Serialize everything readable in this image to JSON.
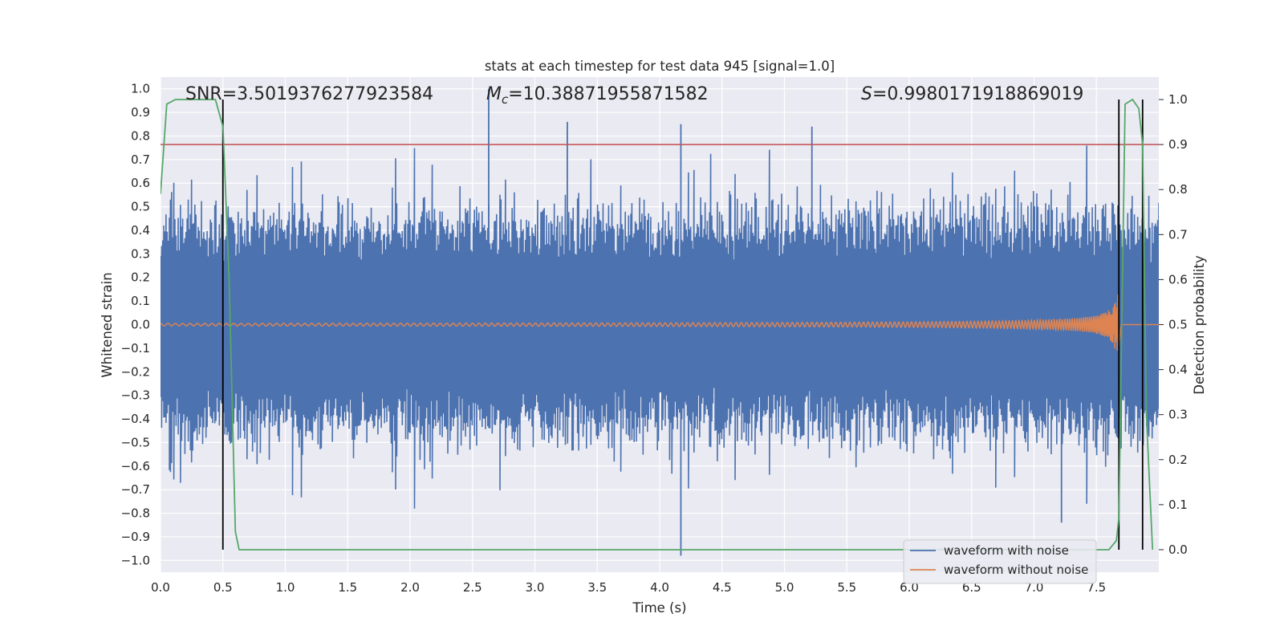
{
  "chart_data": {
    "type": "line",
    "title": "stats at each timestep for test data 945 [signal=1.0]",
    "xlabel": "Time (s)",
    "ylabel": "Whitened strain",
    "y2label": "Detection probability",
    "xlim": [
      0.0,
      8.0
    ],
    "ylim": [
      -1.05,
      1.05
    ],
    "y2lim": [
      -0.05,
      1.05
    ],
    "xticks": [
      "0.0",
      "0.5",
      "1.0",
      "1.5",
      "2.0",
      "2.5",
      "3.0",
      "3.5",
      "4.0",
      "4.5",
      "5.0",
      "5.5",
      "6.0",
      "6.5",
      "7.0",
      "7.5"
    ],
    "yticks": [
      "1.0",
      "0.9",
      "0.8",
      "0.7",
      "0.6",
      "0.5",
      "0.4",
      "0.3",
      "0.2",
      "0.1",
      "0.0",
      "−0.1",
      "−0.2",
      "−0.3",
      "−0.4",
      "−0.5",
      "−0.6",
      "−0.7",
      "−0.8",
      "−0.9",
      "−1.0"
    ],
    "y2ticks": [
      "1.0",
      "0.9",
      "0.8",
      "0.7",
      "0.6",
      "0.5",
      "0.4",
      "0.3",
      "0.2",
      "0.1",
      "0.0"
    ],
    "stats": {
      "snr": "SNR=3.5019376277923584",
      "mc_symbol": "M",
      "mc_sub": "c",
      "mc_value": "=10.38871955871582",
      "s_symbol": "S",
      "s_value": "=0.9980171918869019"
    },
    "threshold": {
      "value": 0.9,
      "axis": "y2",
      "color": "#c44e52"
    },
    "vlines": [
      0.5,
      7.68,
      7.87
    ],
    "spikes": [
      {
        "x": 2.63,
        "y": 1.0
      },
      {
        "x": 3.26,
        "y": 0.86
      },
      {
        "x": 4.17,
        "y": 0.85
      },
      {
        "x": 5.22,
        "y": 0.84
      },
      {
        "x": 4.17,
        "y": -0.98
      },
      {
        "x": 7.22,
        "y": -0.84
      }
    ],
    "detection_probability": {
      "x": [
        0.0,
        0.05,
        0.12,
        0.2,
        0.3,
        0.44,
        0.5,
        0.55,
        0.6,
        0.63,
        1.0,
        7.6,
        7.66,
        7.68,
        7.73,
        7.79,
        7.84,
        7.87,
        7.9,
        7.95
      ],
      "y": [
        0.79,
        0.99,
        1.0,
        1.0,
        1.0,
        1.0,
        0.94,
        0.6,
        0.04,
        0.0,
        0.0,
        0.0,
        0.02,
        0.07,
        0.99,
        1.0,
        0.98,
        0.9,
        0.3,
        0.0
      ]
    },
    "series": [
      {
        "name": "waveform with noise",
        "color": "#4c72b0",
        "samples": 900,
        "baseline_amplitude": 0.4
      },
      {
        "name": "waveform without noise",
        "color": "#dd8452",
        "chirp_start_amplitude": 0.005,
        "merger_time": 7.68,
        "peak_amplitude": 0.13
      },
      {
        "name": "detection probability",
        "color": "#55a868"
      }
    ],
    "legend": {
      "position": "lower-right",
      "entries": [
        {
          "label": "waveform with noise",
          "color": "#4c72b0"
        },
        {
          "label": "waveform without noise",
          "color": "#dd8452"
        }
      ]
    },
    "grid": true
  }
}
